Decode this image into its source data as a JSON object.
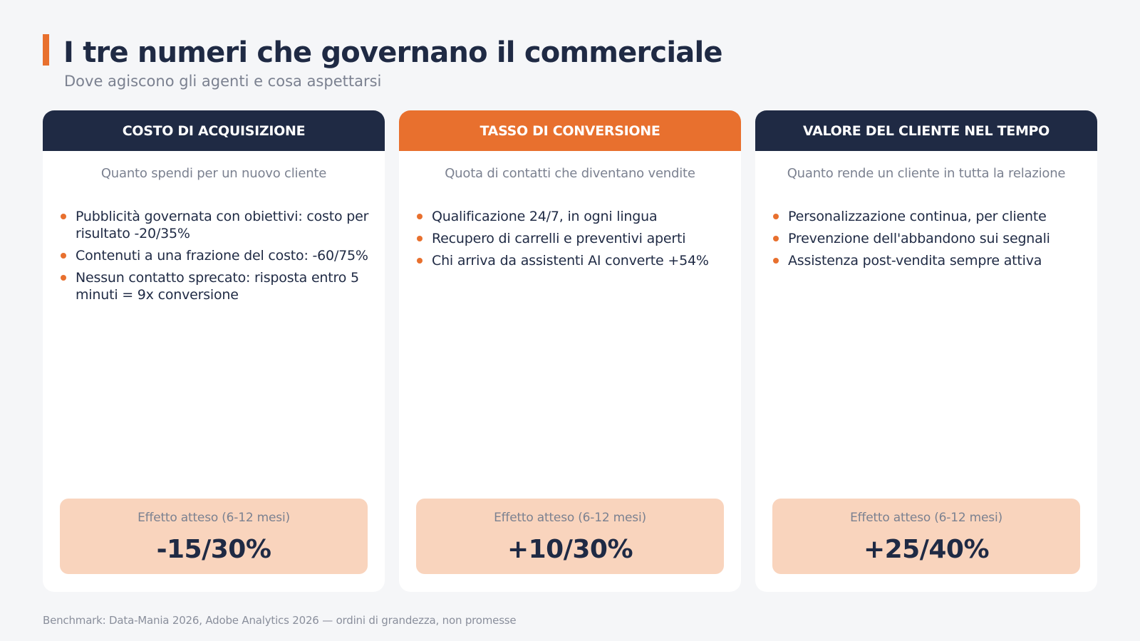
{
  "header": {
    "title": "I tre numeri che governano il commerciale",
    "subtitle": "Dove agiscono gli agenti e cosa aspettarsi"
  },
  "colors": {
    "accent": "#e8702e",
    "navy": "#1f2a44",
    "effect_bg": "#f9d4bd"
  },
  "cards": [
    {
      "title": "COSTO DI ACQUISIZIONE",
      "description": "Quanto spendi per un nuovo cliente",
      "bullets": [
        "Pubblicità governata con obiettivi: costo per risultato -20/35%",
        "Contenuti a una frazione del costo: -60/75%",
        "Nessun contatto sprecato: risposta entro 5 minuti = 9x conversione"
      ],
      "effect_label": "Effetto atteso (6-12 mesi)",
      "effect_value": "-15/30%"
    },
    {
      "title": "TASSO DI CONVERSIONE",
      "description": "Quota di contatti che diventano vendite",
      "bullets": [
        "Qualificazione 24/7, in ogni lingua",
        "Recupero di carrelli e preventivi aperti",
        "Chi arriva da assistenti AI converte +54%"
      ],
      "effect_label": "Effetto atteso (6-12 mesi)",
      "effect_value": "+10/30%"
    },
    {
      "title": "VALORE DEL CLIENTE NEL TEMPO",
      "description": "Quanto rende un cliente in tutta la relazione",
      "bullets": [
        "Personalizzazione continua, per cliente",
        "Prevenzione dell'abbandono sui segnali",
        "Assistenza post-vendita sempre attiva"
      ],
      "effect_label": "Effetto atteso (6-12 mesi)",
      "effect_value": "+25/40%"
    }
  ],
  "footnote": "Benchmark: Data-Mania 2026, Adobe Analytics 2026 — ordini di grandezza, non promesse"
}
